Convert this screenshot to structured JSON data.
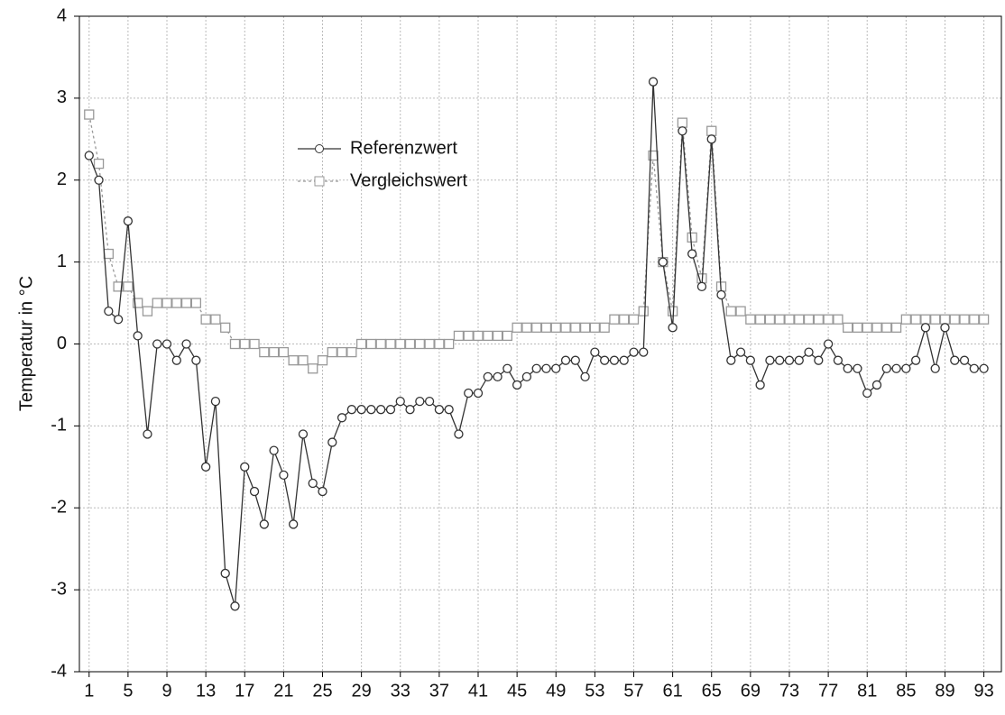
{
  "chart_data": {
    "type": "line",
    "ylabel": "Temperatur in °C",
    "x": [
      1,
      2,
      3,
      4,
      5,
      6,
      7,
      8,
      9,
      10,
      11,
      12,
      13,
      14,
      15,
      16,
      17,
      18,
      19,
      20,
      21,
      22,
      23,
      24,
      25,
      26,
      27,
      28,
      29,
      30,
      31,
      32,
      33,
      34,
      35,
      36,
      37,
      38,
      39,
      40,
      41,
      42,
      43,
      44,
      45,
      46,
      47,
      48,
      49,
      50,
      51,
      52,
      53,
      54,
      55,
      56,
      57,
      58,
      59,
      60,
      61,
      62,
      63,
      64,
      65,
      66,
      67,
      68,
      69,
      70,
      71,
      72,
      73,
      74,
      75,
      76,
      77,
      78,
      79,
      80,
      81,
      82,
      83,
      84,
      85,
      86,
      87,
      88,
      89,
      90,
      91,
      92,
      93
    ],
    "series": [
      {
        "name": "Referenzwert",
        "color": "#333333",
        "marker": "circle",
        "values": [
          2.3,
          2.0,
          0.4,
          0.3,
          1.5,
          0.1,
          -1.1,
          0.0,
          0.0,
          -0.2,
          0.0,
          -0.2,
          -1.5,
          -0.7,
          -2.8,
          -3.2,
          -1.5,
          -1.8,
          -2.2,
          -1.3,
          -1.6,
          -2.2,
          -1.1,
          -1.7,
          -1.8,
          -1.2,
          -0.9,
          -0.8,
          -0.8,
          -0.8,
          -0.8,
          -0.8,
          -0.7,
          -0.8,
          -0.7,
          -0.7,
          -0.8,
          -0.8,
          -1.1,
          -0.6,
          -0.6,
          -0.4,
          -0.4,
          -0.3,
          -0.5,
          -0.4,
          -0.3,
          -0.3,
          -0.3,
          -0.2,
          -0.2,
          -0.4,
          -0.1,
          -0.2,
          -0.2,
          -0.2,
          -0.1,
          -0.1,
          3.2,
          1.0,
          0.2,
          2.6,
          1.1,
          0.7,
          2.5,
          0.6,
          -0.2,
          -0.1,
          -0.2,
          -0.5,
          -0.2,
          -0.2,
          -0.2,
          -0.2,
          -0.1,
          -0.2,
          0.0,
          -0.2,
          -0.3,
          -0.3,
          -0.6,
          -0.5,
          -0.3,
          -0.3,
          -0.3,
          -0.2,
          0.2,
          -0.3,
          0.2,
          -0.2,
          -0.2,
          -0.3,
          -0.3
        ]
      },
      {
        "name": "Vergleichswert",
        "color": "#999999",
        "marker": "square",
        "values": [
          2.8,
          2.2,
          1.1,
          0.7,
          0.7,
          0.5,
          0.4,
          0.5,
          0.5,
          0.5,
          0.5,
          0.5,
          0.3,
          0.3,
          0.2,
          0.0,
          0.0,
          0.0,
          -0.1,
          -0.1,
          -0.1,
          -0.2,
          -0.2,
          -0.3,
          -0.2,
          -0.1,
          -0.1,
          -0.1,
          0.0,
          0.0,
          0.0,
          0.0,
          0.0,
          0.0,
          0.0,
          0.0,
          0.0,
          0.0,
          0.1,
          0.1,
          0.1,
          0.1,
          0.1,
          0.1,
          0.2,
          0.2,
          0.2,
          0.2,
          0.2,
          0.2,
          0.2,
          0.2,
          0.2,
          0.2,
          0.3,
          0.3,
          0.3,
          0.4,
          2.3,
          1.0,
          0.4,
          2.7,
          1.3,
          0.8,
          2.6,
          0.7,
          0.4,
          0.4,
          0.3,
          0.3,
          0.3,
          0.3,
          0.3,
          0.3,
          0.3,
          0.3,
          0.3,
          0.3,
          0.2,
          0.2,
          0.2,
          0.2,
          0.2,
          0.2,
          0.3,
          0.3,
          0.3,
          0.3,
          0.3,
          0.3,
          0.3,
          0.3,
          0.3
        ]
      }
    ],
    "xlim": [
      0,
      94.8
    ],
    "xticks": [
      1,
      5,
      9,
      13,
      17,
      21,
      25,
      29,
      33,
      37,
      41,
      45,
      49,
      53,
      57,
      61,
      65,
      69,
      73,
      77,
      81,
      85,
      89,
      93
    ],
    "ylim": [
      -4,
      4
    ],
    "yticks": [
      -4,
      -3,
      -2,
      -1,
      0,
      1,
      2,
      3,
      4
    ],
    "grid": true
  }
}
